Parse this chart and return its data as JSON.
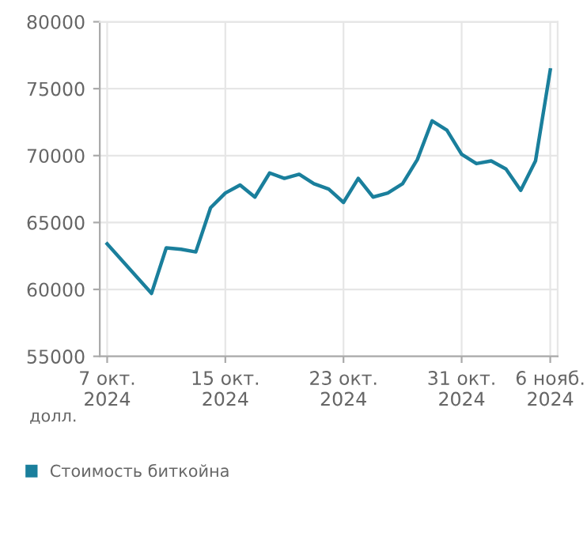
{
  "chart_data": {
    "type": "line",
    "ylabel": "долл.",
    "x": [
      "2024-10-07",
      "2024-10-10",
      "2024-10-11",
      "2024-10-12",
      "2024-10-13",
      "2024-10-14",
      "2024-10-15",
      "2024-10-16",
      "2024-10-17",
      "2024-10-18",
      "2024-10-19",
      "2024-10-20",
      "2024-10-21",
      "2024-10-22",
      "2024-10-23",
      "2024-10-24",
      "2024-10-25",
      "2024-10-26",
      "2024-10-27",
      "2024-10-28",
      "2024-10-29",
      "2024-10-30",
      "2024-10-31",
      "2024-11-01",
      "2024-11-02",
      "2024-11-03",
      "2024-11-04",
      "2024-11-05",
      "2024-11-06"
    ],
    "series": [
      {
        "name": "Стоимость биткойна",
        "color": "#1a7f9c",
        "values": [
          63400,
          59700,
          63100,
          63000,
          62800,
          66100,
          67200,
          67800,
          66900,
          68700,
          68300,
          68600,
          67900,
          67500,
          66500,
          68300,
          66900,
          67200,
          67900,
          69700,
          72600,
          71900,
          70100,
          69400,
          69600,
          69000,
          67400,
          69600,
          76400
        ]
      }
    ],
    "xlim": [
      "2024-10-06T12:00",
      "2024-11-06T12:00"
    ],
    "xticks": [
      {
        "value": "2024-10-07",
        "label": "7 окт.\n2024"
      },
      {
        "value": "2024-10-15",
        "label": "15 окт.\n2024"
      },
      {
        "value": "2024-10-23",
        "label": "23 окт.\n2024"
      },
      {
        "value": "2024-10-31",
        "label": "31 окт.\n2024"
      },
      {
        "value": "2024-11-06",
        "label": "6 нояб.\n2024"
      }
    ],
    "ylim": [
      55000,
      80000
    ],
    "yticks": [
      55000,
      60000,
      65000,
      70000,
      75000,
      80000
    ],
    "grid": true,
    "legend": "bottom left",
    "marker": "none",
    "line_style": "solid"
  }
}
